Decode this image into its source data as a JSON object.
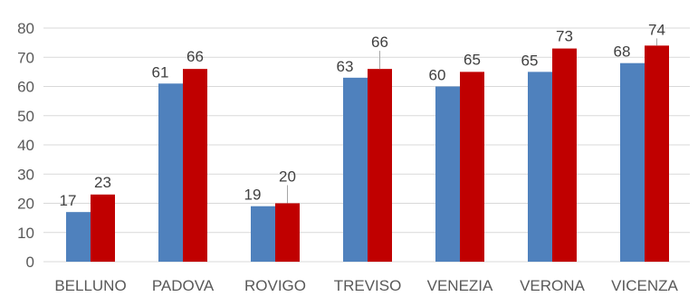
{
  "chart_data": {
    "type": "bar",
    "categories": [
      "BELLUNO",
      "PADOVA",
      "ROVIGO",
      "TREVISO",
      "VENEZIA",
      "VERONA",
      "VICENZA"
    ],
    "series": [
      {
        "values": [
          17,
          61,
          19,
          63,
          60,
          65,
          68
        ],
        "color": "#4f81bd"
      },
      {
        "values": [
          23,
          66,
          20,
          66,
          65,
          73,
          74
        ],
        "color": "#c00000"
      }
    ],
    "title": "",
    "xlabel": "",
    "ylabel": "",
    "ylim": [
      0,
      80
    ],
    "yticks": [
      0,
      10,
      20,
      30,
      40,
      50,
      60,
      70,
      80
    ],
    "grid": true,
    "legend": "none",
    "data_labels": true
  }
}
